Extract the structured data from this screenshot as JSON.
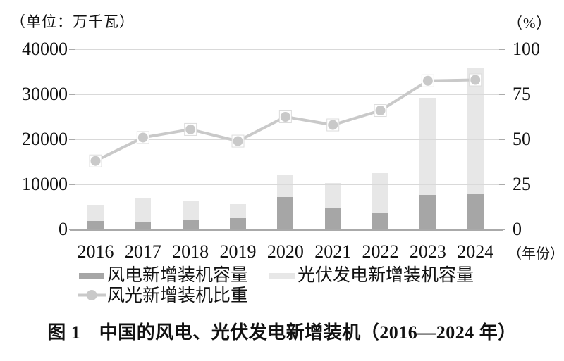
{
  "chart_data": {
    "type": "combo-stacked-bar-line",
    "title": "图 1　中国的风电、光伏发电新增装机（2016—2024 年）",
    "left_axis": {
      "unit": "（单位：万千瓦）",
      "tick_labels": [
        "0",
        "10000",
        "20000",
        "30000",
        "40000"
      ],
      "min": 0,
      "max": 40000
    },
    "right_axis": {
      "unit": "（%）",
      "tick_labels": [
        "0",
        "25",
        "50",
        "75",
        "100"
      ],
      "min": 0,
      "max": 100
    },
    "x_axis": {
      "categories": [
        "2016",
        "2017",
        "2018",
        "2019",
        "2020",
        "2021",
        "2022",
        "2023",
        "2024"
      ],
      "suffix_label": "（年份）"
    },
    "series": [
      {
        "name": "风电新增装机容量",
        "type": "bar",
        "stacked": true,
        "axis": "left",
        "color": "#a6a6a6",
        "values": [
          1930,
          1503,
          2059,
          2574,
          7167,
          4757,
          3763,
          7590,
          7982
        ]
      },
      {
        "name": "光伏发电新增装机容量",
        "type": "bar",
        "stacked": true,
        "axis": "left",
        "color": "#e7e7e7",
        "values": [
          3454,
          5306,
          4426,
          3011,
          4820,
          5488,
          8741,
          21688,
          27757
        ]
      },
      {
        "name": "风光新增装机比重",
        "type": "line",
        "axis": "right",
        "color": "#c9c9c9",
        "values": [
          38,
          51,
          55.5,
          49,
          62.5,
          58,
          66,
          82.5,
          83
        ]
      }
    ],
    "legend_position": "bottom",
    "grid": true
  },
  "colors": {
    "background": "#ffffff",
    "grid": "#d9d9d9",
    "axis": "#aaaaaa",
    "text": "#111111",
    "line": "#c9c9c9",
    "marker_frame": "#dcdcdc",
    "bar_wind": "#a6a6a6",
    "bar_solar": "#e7e7e7"
  }
}
